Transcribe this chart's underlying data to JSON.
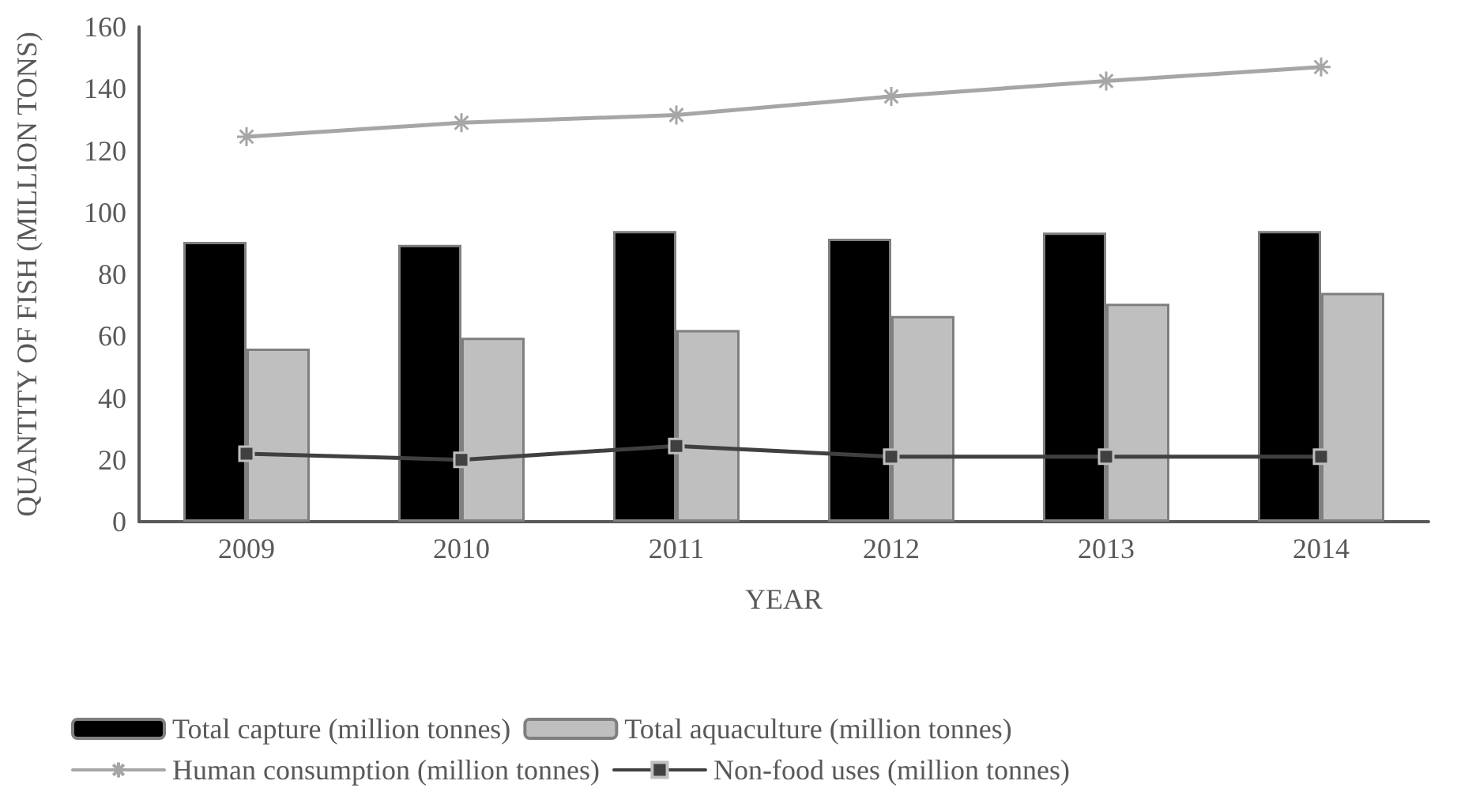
{
  "chart_data": {
    "type": "bar",
    "xlabel": "YEAR",
    "ylabel": "QUANTITY OF FISH (MILLION TONS)",
    "categories": [
      "2009",
      "2010",
      "2011",
      "2012",
      "2013",
      "2014"
    ],
    "series": [
      {
        "name": "Total capture (million tonnes)",
        "color": "#000000",
        "values": [
          90.5,
          89.5,
          94,
          91.5,
          93.5,
          94
        ]
      },
      {
        "name": "Total aquaculture (million tonnes)",
        "color": "#bfbfbf",
        "values": [
          56,
          59.5,
          62,
          66.5,
          70.5,
          74
        ]
      },
      {
        "name": "Human consumption (million tonnes)",
        "type": "line",
        "color": "#a6a6a6",
        "marker": "cross",
        "values": [
          124.5,
          129,
          131.5,
          137.5,
          142.5,
          147
        ]
      },
      {
        "name": "Non-food uses (million tonnes)",
        "type": "line",
        "color": "#404040",
        "marker": "square",
        "values": [
          22,
          20,
          24.5,
          21,
          21,
          21
        ]
      }
    ],
    "ylim": [
      0,
      160
    ],
    "yticks": [
      0,
      20,
      40,
      60,
      80,
      100,
      120,
      140,
      160
    ],
    "grid": false,
    "legend": "bottom"
  }
}
